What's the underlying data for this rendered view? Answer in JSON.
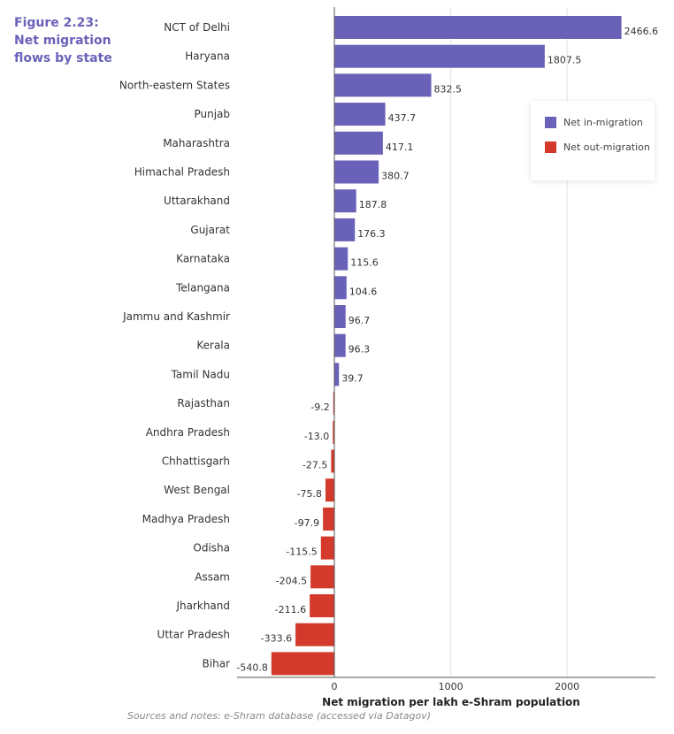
{
  "figure_title": {
    "line1": "Figure 2.23:",
    "line2": "Net migration",
    "line3": "flows by state"
  },
  "legend": {
    "in_label": "Net in-migration",
    "out_label": "Net out-migration"
  },
  "colors": {
    "positive": "#6a62b8",
    "negative": "#d33a2c",
    "grid": "#e4e4e4",
    "axis": "#555555",
    "text": "#333333"
  },
  "source_note": "Sources and notes: e-Shram database (accessed via Datagov)",
  "chart_data": {
    "type": "bar",
    "orientation": "horizontal",
    "title": "Net migration flows by state",
    "xlabel": "Net migration per lakh e-Shram population",
    "ylabel": "",
    "xlim": [
      -850,
      2850
    ],
    "xticks": [
      0,
      1000,
      2000
    ],
    "xtick_labels": [
      "0",
      "1000",
      "2000"
    ],
    "grid": true,
    "legend_position": "top-right",
    "categories": [
      "NCT of Delhi",
      "Haryana",
      "North-eastern States",
      "Punjab",
      "Maharashtra",
      "Himachal Pradesh",
      "Uttarakhand",
      "Gujarat",
      "Karnataka",
      "Telangana",
      "Jammu and Kashmir",
      "Kerala",
      "Tamil Nadu",
      "Rajasthan",
      "Andhra Pradesh",
      "Chhattisgarh",
      "West Bengal",
      "Madhya Pradesh",
      "Odisha",
      "Assam",
      "Jharkhand",
      "Uttar Pradesh",
      "Bihar"
    ],
    "values": [
      2466.6,
      1807.5,
      832.5,
      437.7,
      417.1,
      380.7,
      187.8,
      176.3,
      115.6,
      104.6,
      96.7,
      96.3,
      39.7,
      -9.2,
      -13.0,
      -27.5,
      -75.8,
      -97.9,
      -115.5,
      -204.5,
      -211.6,
      -333.6,
      -540.8
    ],
    "value_labels": [
      "2466.6",
      "1807.5",
      "832.5",
      "437.7",
      "417.1",
      "380.7",
      "187.8",
      "176.3",
      "115.6",
      "104.6",
      "96.7",
      "96.3",
      "39.7",
      "-9.2",
      "-13.0",
      "-27.5",
      "-75.8",
      "-97.9",
      "-115.5",
      "-204.5",
      "-211.6",
      "-333.6",
      "-540.8"
    ]
  }
}
